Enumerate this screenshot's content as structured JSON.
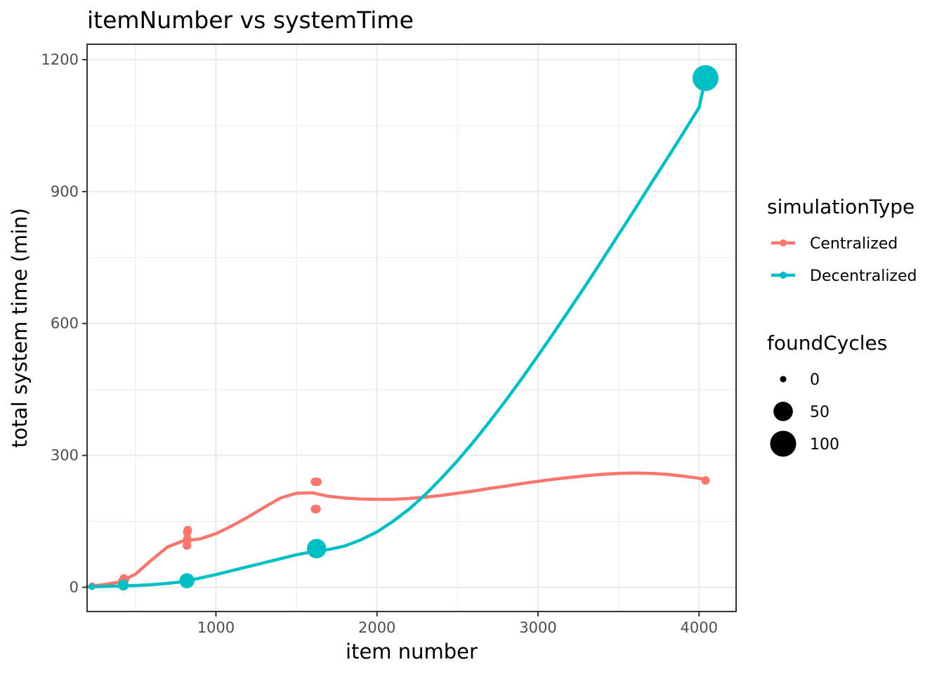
{
  "chart_data": {
    "type": "scatter",
    "title": "itemNumber vs systemTime",
    "xlabel": "item number",
    "ylabel": "total system time (min)",
    "xlim": [
      200,
      4230
    ],
    "ylim": [
      -55,
      1235
    ],
    "x_ticks": [
      1000,
      2000,
      3000,
      4000
    ],
    "x_tick_labels": [
      "1000",
      "2000",
      "3000",
      "4000"
    ],
    "x_minor": [
      500,
      1500,
      2500,
      3500
    ],
    "y_ticks": [
      0,
      300,
      600,
      900,
      1200
    ],
    "y_tick_labels": [
      "0",
      "300",
      "600",
      "900",
      "1200"
    ],
    "y_minor": [
      150,
      450,
      750,
      1050
    ],
    "grid": true,
    "legend_position": "right",
    "series": [
      {
        "name": "Centralized",
        "color": "#F8766D",
        "points": [
          {
            "x": 230,
            "y": 2,
            "size": 1
          },
          {
            "x": 232,
            "y": 4,
            "size": 1
          },
          {
            "x": 420,
            "y": 15,
            "size": 2
          },
          {
            "x": 428,
            "y": 20,
            "size": 2
          },
          {
            "x": 435,
            "y": 18,
            "size": 2
          },
          {
            "x": 820,
            "y": 95,
            "size": 2
          },
          {
            "x": 820,
            "y": 105,
            "size": 2
          },
          {
            "x": 822,
            "y": 110,
            "size": 2
          },
          {
            "x": 822,
            "y": 125,
            "size": 2
          },
          {
            "x": 825,
            "y": 130,
            "size": 2
          },
          {
            "x": 1615,
            "y": 178,
            "size": 2
          },
          {
            "x": 1625,
            "y": 178,
            "size": 2
          },
          {
            "x": 1615,
            "y": 240,
            "size": 2
          },
          {
            "x": 1630,
            "y": 240,
            "size": 2
          },
          {
            "x": 4040,
            "y": 243,
            "size": 2
          }
        ],
        "smooth": [
          [
            200,
            2
          ],
          [
            300,
            6
          ],
          [
            400,
            12
          ],
          [
            500,
            30
          ],
          [
            600,
            62
          ],
          [
            700,
            92
          ],
          [
            800,
            106
          ],
          [
            900,
            110
          ],
          [
            1000,
            122
          ],
          [
            1100,
            140
          ],
          [
            1200,
            160
          ],
          [
            1300,
            182
          ],
          [
            1400,
            203
          ],
          [
            1500,
            214
          ],
          [
            1600,
            215
          ],
          [
            1700,
            207
          ],
          [
            1800,
            203
          ],
          [
            1900,
            201
          ],
          [
            2000,
            200
          ],
          [
            2100,
            200
          ],
          [
            2200,
            202
          ],
          [
            2300,
            205
          ],
          [
            2400,
            209
          ],
          [
            2500,
            214
          ],
          [
            2600,
            219
          ],
          [
            2700,
            225
          ],
          [
            2800,
            230
          ],
          [
            2900,
            236
          ],
          [
            3000,
            241
          ],
          [
            3100,
            246
          ],
          [
            3200,
            250
          ],
          [
            3300,
            254
          ],
          [
            3400,
            257
          ],
          [
            3500,
            259
          ],
          [
            3600,
            260
          ],
          [
            3700,
            259
          ],
          [
            3800,
            257
          ],
          [
            3900,
            253
          ],
          [
            4000,
            248
          ],
          [
            4040,
            245
          ]
        ]
      },
      {
        "name": "Decentralized",
        "color": "#00BFC4",
        "points": [
          {
            "x": 230,
            "y": 1,
            "size": 1
          },
          {
            "x": 425,
            "y": 5,
            "size": 3
          },
          {
            "x": 820,
            "y": 15,
            "size": 5
          },
          {
            "x": 1625,
            "y": 88,
            "size": 7
          },
          {
            "x": 4040,
            "y": 1158,
            "size": 10
          }
        ],
        "smooth": [
          [
            200,
            1
          ],
          [
            300,
            2
          ],
          [
            400,
            3
          ],
          [
            500,
            4
          ],
          [
            600,
            6
          ],
          [
            700,
            9
          ],
          [
            800,
            13
          ],
          [
            900,
            21
          ],
          [
            1000,
            29
          ],
          [
            1100,
            38
          ],
          [
            1200,
            47
          ],
          [
            1300,
            56
          ],
          [
            1400,
            65
          ],
          [
            1500,
            74
          ],
          [
            1600,
            81
          ],
          [
            1700,
            86
          ],
          [
            1800,
            94
          ],
          [
            1900,
            108
          ],
          [
            2000,
            126
          ],
          [
            2100,
            150
          ],
          [
            2200,
            178
          ],
          [
            2300,
            211
          ],
          [
            2400,
            248
          ],
          [
            2500,
            288
          ],
          [
            2600,
            331
          ],
          [
            2700,
            377
          ],
          [
            2800,
            425
          ],
          [
            2900,
            475
          ],
          [
            3000,
            527
          ],
          [
            3100,
            580
          ],
          [
            3200,
            634
          ],
          [
            3300,
            689
          ],
          [
            3400,
            745
          ],
          [
            3500,
            802
          ],
          [
            3600,
            859
          ],
          [
            3700,
            917
          ],
          [
            3800,
            974
          ],
          [
            3900,
            1032
          ],
          [
            4000,
            1091
          ],
          [
            4040,
            1158
          ]
        ]
      }
    ],
    "legend": {
      "color_title": "simulationType",
      "color_entries": [
        "Centralized",
        "Decentralized"
      ],
      "size_title": "foundCycles",
      "size_entries": [
        {
          "label": "0",
          "size": 1
        },
        {
          "label": "50",
          "size": 7
        },
        {
          "label": "100",
          "size": 10
        }
      ]
    }
  }
}
